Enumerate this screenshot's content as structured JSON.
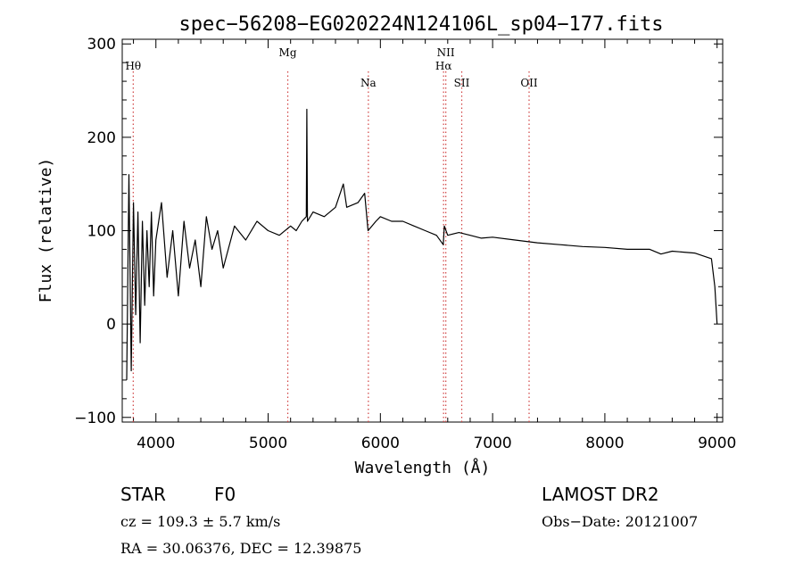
{
  "chart_data": {
    "type": "line",
    "title": "spec−56208−EG020224N124106L_sp04−177.fits",
    "xlabel": "Wavelength (Å)",
    "ylabel": "Flux (relative)",
    "xlim": [
      3700,
      9050
    ],
    "ylim": [
      -105,
      305
    ],
    "xticks": [
      4000,
      5000,
      6000,
      7000,
      8000,
      9000
    ],
    "yticks": [
      -100,
      0,
      100,
      200,
      300
    ],
    "xtick_labels": [
      "4000",
      "5000",
      "6000",
      "7000",
      "8000",
      "9000"
    ],
    "ytick_labels": [
      "−100",
      "0",
      "100",
      "200",
      "300"
    ],
    "series": [
      {
        "x": [
          3740,
          3760,
          3780,
          3800,
          3820,
          3840,
          3860,
          3880,
          3900,
          3920,
          3940,
          3960,
          3980,
          4000,
          4050,
          4100,
          4150,
          4200,
          4250,
          4300,
          4350,
          4400,
          4450,
          4500,
          4550,
          4600,
          4700,
          4800,
          4900,
          5000,
          5100,
          5200,
          5250,
          5300,
          5340,
          5345,
          5350,
          5400,
          5500,
          5600,
          5670,
          5700,
          5800,
          5860,
          5890,
          5960,
          6000,
          6100,
          6200,
          6300,
          6400,
          6500,
          6560,
          6570,
          6600,
          6700,
          6800,
          6900,
          7000,
          7200,
          7400,
          7600,
          7800,
          8000,
          8200,
          8400,
          8500,
          8600,
          8800,
          8950,
          8980,
          9000
        ],
        "y": [
          -60,
          160,
          -50,
          130,
          10,
          120,
          -20,
          110,
          20,
          100,
          40,
          120,
          30,
          90,
          130,
          50,
          100,
          30,
          110,
          60,
          90,
          40,
          115,
          80,
          100,
          60,
          105,
          90,
          110,
          100,
          95,
          105,
          100,
          110,
          115,
          230,
          110,
          120,
          115,
          125,
          150,
          125,
          130,
          140,
          100,
          110,
          115,
          110,
          110,
          105,
          100,
          95,
          85,
          105,
          95,
          98,
          95,
          92,
          93,
          90,
          87,
          85,
          83,
          82,
          80,
          80,
          75,
          78,
          76,
          70,
          40,
          0
        ]
      }
    ],
    "lines": [
      {
        "label": "Hθ",
        "x": 3798
      },
      {
        "label": "Mg",
        "x": 5175
      },
      {
        "label": "Na",
        "x": 5893
      },
      {
        "label": "NII",
        "x": 6583
      },
      {
        "label": "Hα",
        "x": 6563
      },
      {
        "label": "SII",
        "x": 6725
      },
      {
        "label": "OII",
        "x": 7325
      }
    ]
  },
  "info": {
    "class": "STAR",
    "subclass": "F0",
    "survey": "LAMOST DR2",
    "cz": "cz = 109.3 ± 5.7 km/s",
    "obs_date": "Obs−Date: 20121007",
    "coords": "RA =  30.06376, DEC =  12.39875"
  }
}
